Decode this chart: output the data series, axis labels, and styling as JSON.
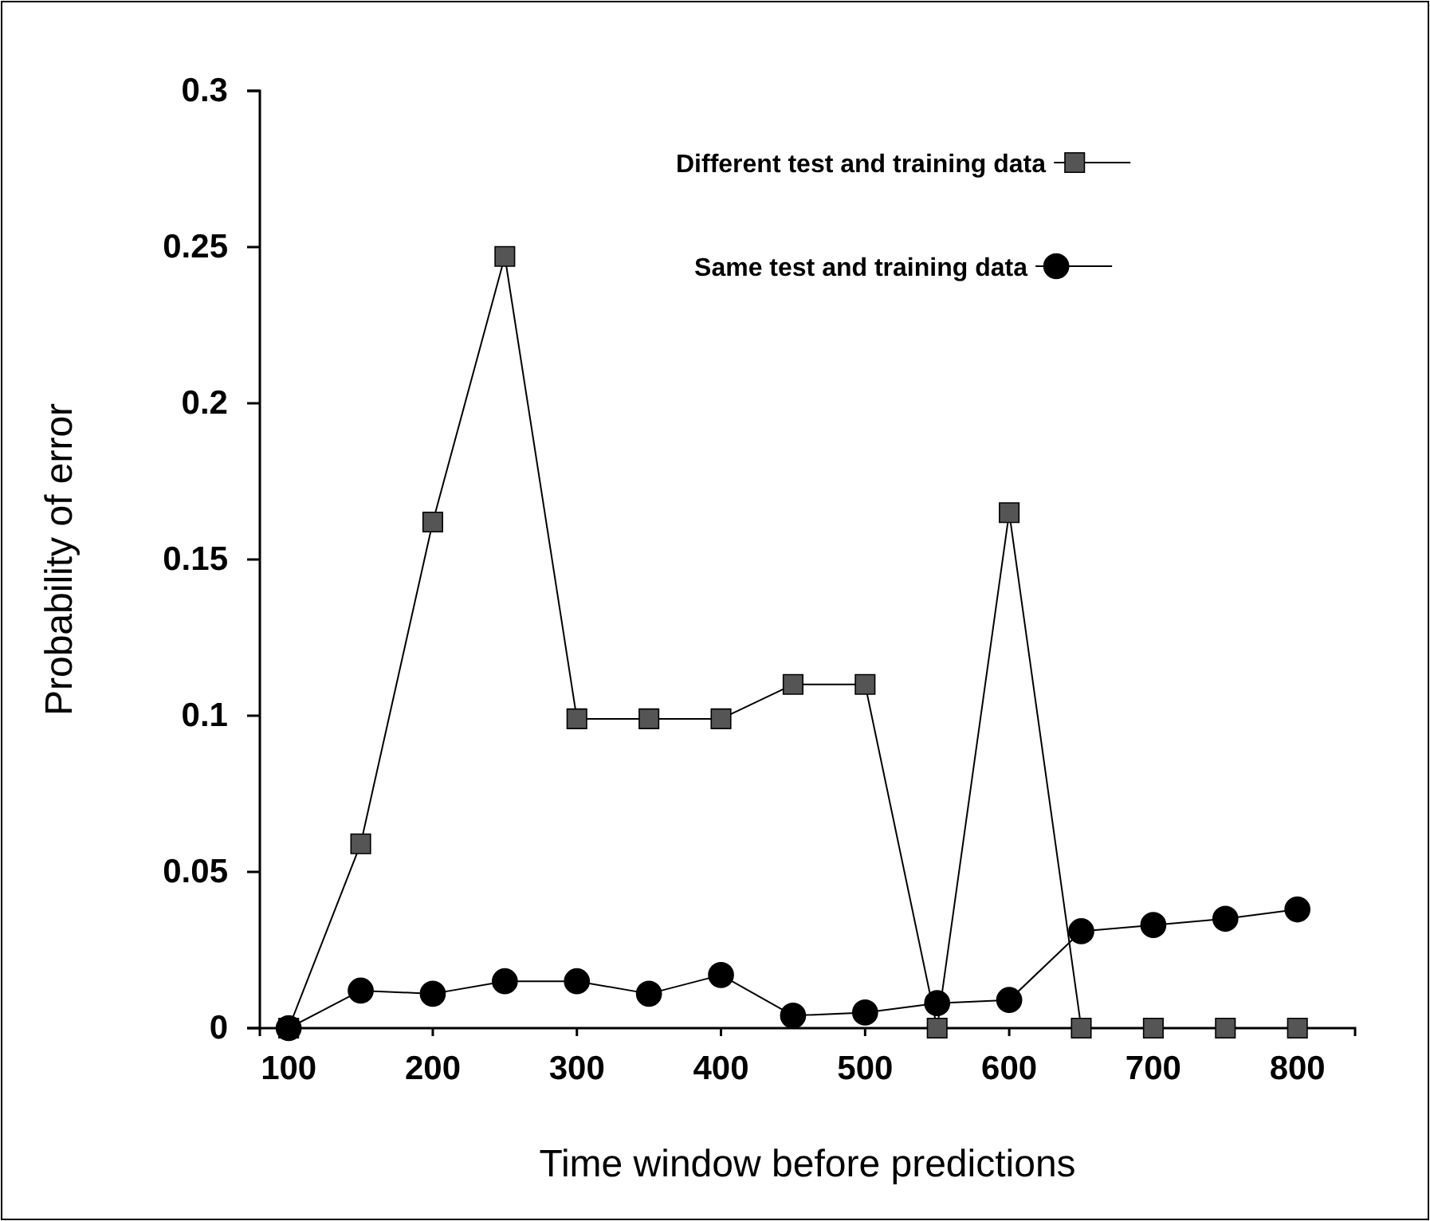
{
  "chart_data": {
    "type": "line",
    "xlabel": "Time window before predictions",
    "ylabel": "Probability of error",
    "x": [
      100,
      150,
      200,
      250,
      300,
      350,
      400,
      450,
      500,
      550,
      600,
      650,
      700,
      750,
      800
    ],
    "xlim": [
      80,
      840
    ],
    "xticks": [
      100,
      200,
      300,
      400,
      500,
      600,
      700,
      800
    ],
    "ylim": [
      0,
      0.3
    ],
    "yticks": [
      0,
      0.05,
      0.1,
      0.15,
      0.2,
      0.25,
      0.3
    ],
    "legend": "top",
    "grid": false,
    "series": [
      {
        "name": "Different test and training data",
        "color": "#555555",
        "marker": "square",
        "values": [
          0,
          0.059,
          0.162,
          0.247,
          0.099,
          0.099,
          0.099,
          0.11,
          0.11,
          0,
          0.165,
          0,
          0,
          0,
          0
        ]
      },
      {
        "name": "Same test and training data",
        "color": "#000000",
        "marker": "circle",
        "values": [
          0,
          0.012,
          0.011,
          0.015,
          0.015,
          0.011,
          0.017,
          0.004,
          0.005,
          0.008,
          0.009,
          0.031,
          0.033,
          0.035,
          0.038
        ]
      }
    ]
  }
}
